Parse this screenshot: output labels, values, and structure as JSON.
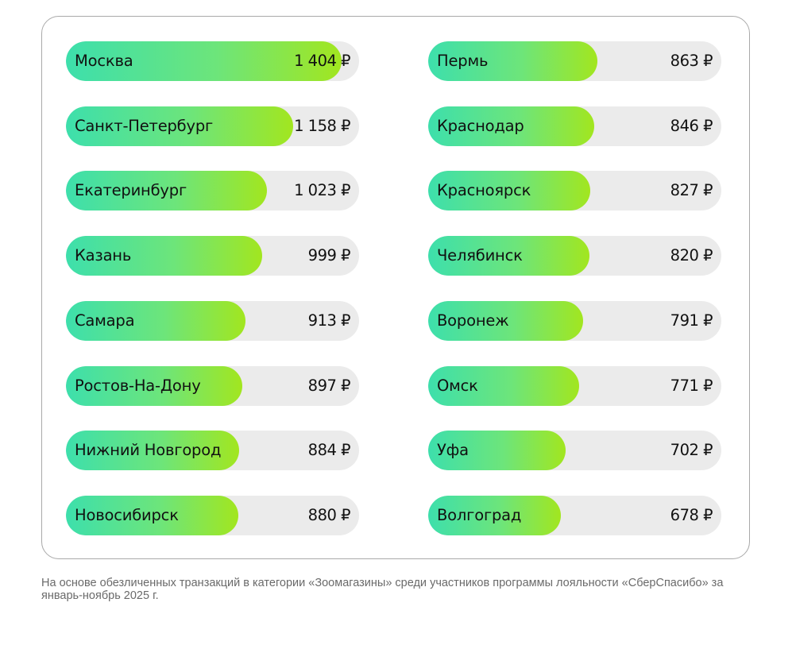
{
  "chart_data": {
    "type": "bar",
    "orientation": "horizontal",
    "currency_symbol": "₽",
    "columns": [
      {
        "categories": [
          "Москва",
          "Санкт-Петербург",
          "Екатеринбург",
          "Казань",
          "Самара",
          "Ростов-На-Дону",
          "Нижний Новгород",
          "Новосибирск"
        ],
        "values": [
          1404,
          1158,
          1023,
          999,
          913,
          897,
          884,
          880
        ],
        "value_labels": [
          "1 404 ₽",
          "1 158 ₽",
          "1 023 ₽",
          "999 ₽",
          "913 ₽",
          "897 ₽",
          "884 ₽",
          "880 ₽"
        ]
      },
      {
        "categories": [
          "Пермь",
          "Краснодар",
          "Красноярск",
          "Челябинск",
          "Воронеж",
          "Омск",
          "Уфа",
          "Волгоград"
        ],
        "values": [
          863,
          846,
          827,
          820,
          791,
          771,
          702,
          678
        ],
        "value_labels": [
          "863 ₽",
          "846 ₽",
          "827 ₽",
          "820 ₽",
          "791 ₽",
          "771 ₽",
          "702 ₽",
          "678 ₽"
        ]
      }
    ],
    "colors": {
      "gradient_start": "#3ddfac",
      "gradient_end": "#a2e61f",
      "track": "#ebebeb"
    }
  },
  "footnote": "На основе обезличенных транзакций в категории «Зоомагазины» среди участников программы лояльности «СберСпасибо» за январь-ноябрь 2025 г."
}
